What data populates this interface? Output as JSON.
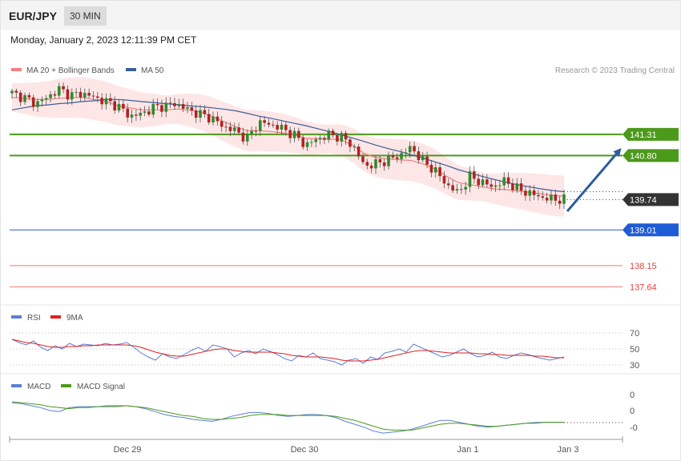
{
  "header": {
    "symbol": "EUR/JPY",
    "timeframe": "30 MIN"
  },
  "timestamp": "Monday, January 2, 2023 12:11:39 PM CET",
  "copyright": "Research © 2023 Trading Central",
  "colors": {
    "ma20": "#f08080",
    "ma50": "#3a5f9c",
    "band_fill": "#fde0e0",
    "bull": "#2e8b2e",
    "bear": "#b22222",
    "resistance": "#4c9a1a",
    "support_blue": "#1e5bd6",
    "support_red": "#e8423f",
    "current": "#333333",
    "arrow": "#2d5d9e",
    "rsi": "#5b7fd6",
    "rsi_ma": "#e02020",
    "macd": "#5b7fd6",
    "macd_signal": "#4c9a1a"
  },
  "chart_data": [
    {
      "type": "candlestick",
      "legend": [
        "MA 20 + Bollinger Bands",
        "MA 50"
      ],
      "x_ticks": [
        "Dec 29",
        "Dec 30",
        "Jan 1",
        "Jan 3"
      ],
      "ylim": [
        137.3,
        142.6
      ],
      "levels": [
        {
          "value": 141.31,
          "label": "141.31",
          "kind": "resistance"
        },
        {
          "value": 140.8,
          "label": "140.80",
          "kind": "resistance"
        },
        {
          "value": 139.74,
          "label": "139.74",
          "kind": "current"
        },
        {
          "value": 139.01,
          "label": "139.01",
          "kind": "support_blue"
        },
        {
          "value": 138.15,
          "label": "138.15",
          "kind": "support_red"
        },
        {
          "value": 137.64,
          "label": "137.64",
          "kind": "support_red"
        }
      ],
      "close_path": [
        142.3,
        142.2,
        142.05,
        142.2,
        142.4,
        142.25,
        142.3,
        142.2,
        142.1,
        142.0,
        141.75,
        141.8,
        141.95,
        142.0,
        142.05,
        141.9,
        141.8,
        141.7,
        141.5,
        141.4,
        141.2,
        141.6,
        141.55,
        141.45,
        141.3,
        141.05,
        141.2,
        141.3,
        141.25,
        141.05,
        140.55,
        140.6,
        140.7,
        140.8,
        141.0,
        140.65,
        140.45,
        140.1,
        139.9,
        140.3,
        140.15,
        140.05,
        140.2,
        140.0,
        139.9,
        139.8,
        139.75,
        139.74
      ],
      "candle_count": 130,
      "ma20": [
        142.2,
        142.18,
        142.15,
        142.15,
        142.18,
        142.2,
        142.2,
        142.15,
        142.1,
        142.0,
        141.95,
        141.9,
        141.9,
        141.9,
        141.92,
        141.9,
        141.85,
        141.75,
        141.62,
        141.5,
        141.4,
        141.4,
        141.38,
        141.35,
        141.3,
        141.22,
        141.2,
        141.2,
        141.18,
        141.05,
        140.85,
        140.75,
        140.72,
        140.7,
        140.68,
        140.6,
        140.48,
        140.3,
        140.15,
        140.1,
        140.05,
        140.0,
        139.98,
        139.95,
        139.92,
        139.88,
        139.84,
        139.82
      ],
      "ma50": [
        141.9,
        141.95,
        142.0,
        142.02,
        142.05,
        142.07,
        142.1,
        142.12,
        142.15,
        142.15,
        142.13,
        142.1,
        142.08,
        142.05,
        142.03,
        142.0,
        141.98,
        141.95,
        141.92,
        141.88,
        141.82,
        141.75,
        141.7,
        141.64,
        141.58,
        141.52,
        141.45,
        141.38,
        141.3,
        141.22,
        141.14,
        141.05,
        140.97,
        140.9,
        140.82,
        140.74,
        140.65,
        140.56,
        140.46,
        140.38,
        140.3,
        140.23,
        140.16,
        140.1,
        140.05,
        140.0,
        139.96,
        139.93
      ],
      "bollinger_width": 0.45
    },
    {
      "type": "line",
      "legend": [
        "RSI",
        "9MA"
      ],
      "y_ticks": [
        70,
        50,
        30
      ],
      "ylim": [
        20,
        80
      ],
      "series": [
        {
          "values": [
            62,
            58,
            55,
            60,
            52,
            48,
            54,
            50,
            57,
            53,
            56,
            55,
            54,
            57,
            55,
            56,
            58,
            52,
            45,
            40,
            36,
            44,
            40,
            38,
            43,
            48,
            52,
            47,
            55,
            53,
            50,
            40,
            45,
            48,
            44,
            50,
            47,
            43,
            38,
            35,
            42,
            40,
            45,
            38,
            36,
            34,
            30,
            36,
            38,
            32,
            40,
            37,
            45,
            47,
            50,
            46,
            56,
            52,
            48,
            44,
            40,
            42,
            46,
            50,
            44,
            40,
            42,
            46,
            40,
            38,
            42,
            45,
            43,
            40,
            38,
            36,
            38,
            40
          ]
        },
        {
          "values": [
            62,
            60,
            58,
            57,
            55,
            53,
            52,
            52,
            53,
            53,
            54,
            54,
            55,
            55,
            55,
            55,
            55,
            54,
            52,
            49,
            46,
            44,
            42,
            41,
            41,
            43,
            45,
            47,
            49,
            50,
            50,
            48,
            47,
            46,
            46,
            46,
            46,
            45,
            44,
            42,
            41,
            40,
            40,
            40,
            39,
            38,
            36,
            35,
            35,
            35,
            36,
            37,
            39,
            41,
            43,
            45,
            47,
            48,
            48,
            47,
            46,
            45,
            45,
            45,
            45,
            44,
            44,
            43,
            43,
            42,
            42,
            42,
            42,
            41,
            41,
            40,
            39,
            39
          ]
        }
      ]
    },
    {
      "type": "line",
      "legend": [
        "MACD",
        "MACD Signal"
      ],
      "y_ticks": [
        "0",
        "0",
        "-0"
      ],
      "ylim": [
        -0.3,
        0.15
      ],
      "series": [
        {
          "values": [
            0.05,
            0.04,
            0.02,
            0.0,
            -0.03,
            -0.04,
            0.0,
            0.01,
            0.01,
            0.01,
            0.02,
            0.02,
            0.02,
            0.01,
            -0.01,
            -0.04,
            -0.07,
            -0.09,
            -0.1,
            -0.12,
            -0.13,
            -0.14,
            -0.12,
            -0.09,
            -0.07,
            -0.05,
            -0.05,
            -0.06,
            -0.08,
            -0.09,
            -0.08,
            -0.07,
            -0.07,
            -0.08,
            -0.1,
            -0.14,
            -0.17,
            -0.2,
            -0.24,
            -0.26,
            -0.25,
            -0.24,
            -0.22,
            -0.19,
            -0.16,
            -0.13,
            -0.13,
            -0.15,
            -0.17,
            -0.19,
            -0.2,
            -0.19,
            -0.18,
            -0.17,
            -0.16,
            -0.15,
            -0.15,
            -0.15,
            -0.15
          ]
        },
        {
          "values": [
            0.06,
            0.05,
            0.04,
            0.03,
            0.01,
            0.0,
            -0.01,
            0.0,
            0.0,
            0.01,
            0.01,
            0.01,
            0.02,
            0.01,
            0.0,
            -0.02,
            -0.04,
            -0.06,
            -0.08,
            -0.09,
            -0.11,
            -0.12,
            -0.12,
            -0.11,
            -0.1,
            -0.08,
            -0.07,
            -0.07,
            -0.07,
            -0.08,
            -0.08,
            -0.08,
            -0.08,
            -0.08,
            -0.09,
            -0.11,
            -0.13,
            -0.16,
            -0.19,
            -0.22,
            -0.23,
            -0.23,
            -0.23,
            -0.21,
            -0.19,
            -0.17,
            -0.16,
            -0.16,
            -0.17,
            -0.18,
            -0.19,
            -0.19,
            -0.18,
            -0.17,
            -0.16,
            -0.16,
            -0.15,
            -0.15,
            -0.15
          ]
        }
      ]
    }
  ]
}
